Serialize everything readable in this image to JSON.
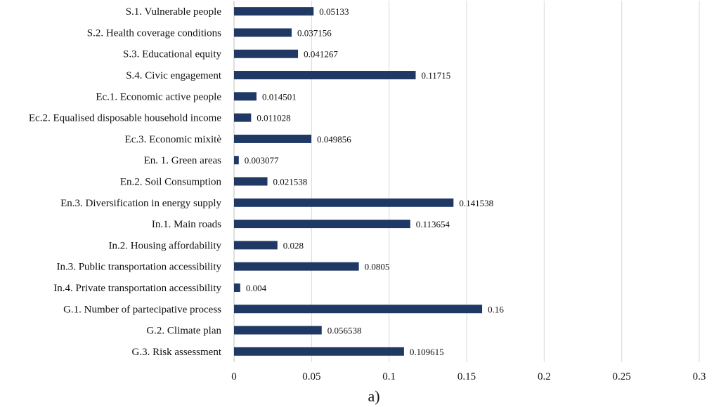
{
  "chart_data": {
    "type": "bar",
    "orientation": "horizontal",
    "categories": [
      "S.1. Vulnerable people",
      "S.2. Health coverage conditions",
      "S.3. Educational equity",
      "S.4. Civic engagement",
      "Ec.1. Economic active people",
      "Ec.2. Equalised disposable household income",
      "Ec.3. Economic mixitè",
      "En. 1. Green areas",
      "En.2. Soil Consumption",
      "En.3. Diversification in energy supply",
      "In.1. Main roads",
      "In.2. Housing affordability",
      "In.3. Public transportation accessibility",
      "In.4. Private transportation accessibility",
      "G.1. Number of partecipative process",
      "G.2. Climate plan",
      "G.3. Risk assessment"
    ],
    "values": [
      0.05133,
      0.037156,
      0.041267,
      0.11715,
      0.014501,
      0.011028,
      0.049856,
      0.003077,
      0.021538,
      0.141538,
      0.113654,
      0.028,
      0.0805,
      0.004,
      0.16,
      0.056538,
      0.109615
    ],
    "value_labels": [
      "0.05133",
      "0.037156",
      "0.041267",
      "0.11715",
      "0.014501",
      "0.011028",
      "0.049856",
      "0.003077",
      "0.021538",
      "0.141538",
      "0.113654",
      "0.028",
      "0.0805",
      "0.004",
      "0.16",
      "0.056538",
      "0.109615"
    ],
    "xlim": [
      0,
      0.3
    ],
    "xticks": [
      0,
      0.05,
      0.1,
      0.15,
      0.2,
      0.25,
      0.3
    ],
    "xtick_labels": [
      "0",
      "0.05",
      "0.1",
      "0.15",
      "0.2",
      "0.25",
      "0.3"
    ],
    "grid": "vertical",
    "bar_color": "#1f3864",
    "caption": "a)"
  }
}
